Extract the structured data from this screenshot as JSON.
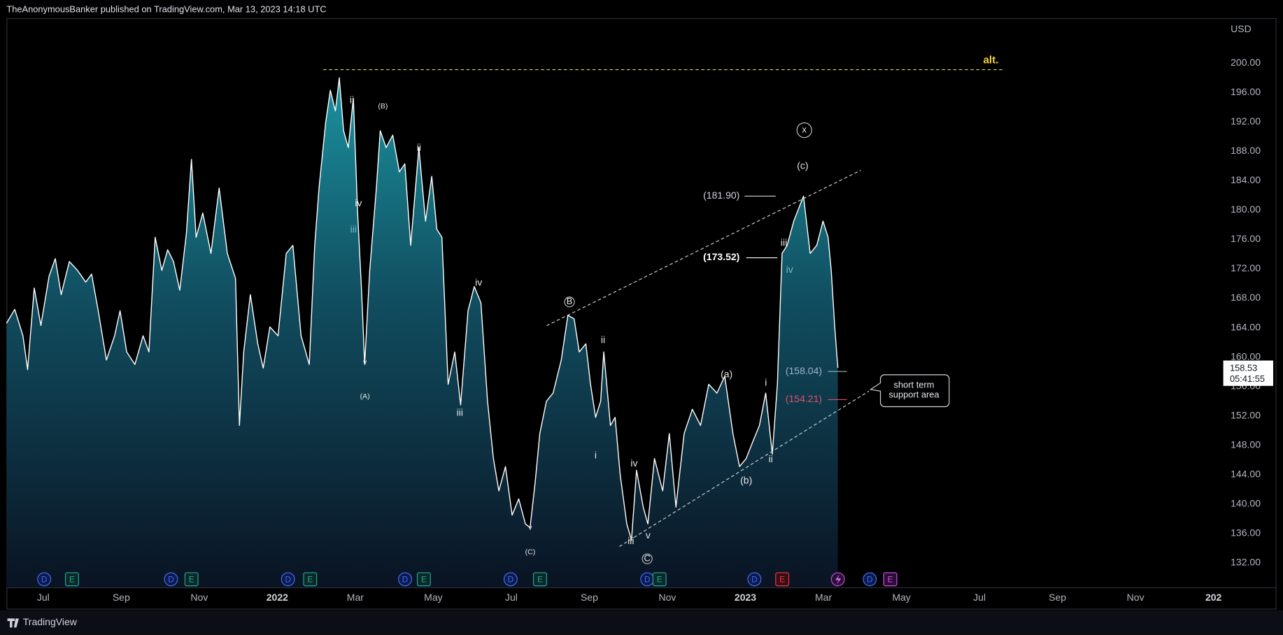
{
  "header": "TheAnonymousBanker published on TradingView.com, Mar 13, 2023 14:18 UTC",
  "footer": "TradingView",
  "currency": "USD",
  "last_price": 158.53,
  "countdown": "05:41:55",
  "callout": [
    "short term",
    "support area"
  ],
  "annotations": [
    "ii",
    "(B)",
    "ii",
    "iv",
    "iii",
    "v",
    "(A)",
    "iv",
    "iii",
    "v",
    "(C)",
    "B",
    "ii",
    "i",
    "iv",
    "iii",
    "v",
    "C",
    "(a)",
    "i",
    "(b)",
    "ii",
    "(c)",
    "x",
    "iii",
    "iv",
    "alt."
  ],
  "events": [
    "D",
    "E",
    "D",
    "E",
    "D",
    "E",
    "D",
    "E",
    "D",
    "E",
    "D",
    "E",
    "D",
    "E",
    "D",
    "E"
  ],
  "levels": [
    {
      "value": 181.9,
      "label": "(181.90)"
    },
    {
      "value": 173.52,
      "label": "(173.52)"
    },
    {
      "value": 158.04,
      "label": "(158.04)"
    },
    {
      "value": 154.21,
      "label": "(154.21)"
    }
  ],
  "chart_data": {
    "type": "area",
    "color": "#ffffff",
    "grid": false,
    "x": [
      -0.94,
      -0.73,
      -0.52,
      -0.4,
      -0.23,
      -0.06,
      0.15,
      0.31,
      0.46,
      0.67,
      0.88,
      1.09,
      1.24,
      1.41,
      1.62,
      1.83,
      1.97,
      2.14,
      2.35,
      2.56,
      2.71,
      2.87,
      3.04,
      3.19,
      3.34,
      3.5,
      3.67,
      3.8,
      3.92,
      4.09,
      4.3,
      4.51,
      4.72,
      4.93,
      5.03,
      5.14,
      5.31,
      5.5,
      5.64,
      5.81,
      6.02,
      6.23,
      6.4,
      6.61,
      6.82,
      6.96,
      7.07,
      7.24,
      7.36,
      7.49,
      7.59,
      7.7,
      7.82,
      7.95,
      8.06,
      8.16,
      8.24,
      8.37,
      8.54,
      8.64,
      8.79,
      8.96,
      9.13,
      9.27,
      9.42,
      9.63,
      9.8,
      9.96,
      10.09,
      10.22,
      10.38,
      10.55,
      10.7,
      10.89,
      11.05,
      11.22,
      11.39,
      11.54,
      11.68,
      11.85,
      12.02,
      12.19,
      12.36,
      12.48,
      12.61,
      12.73,
      12.9,
      13.07,
      13.28,
      13.45,
      13.61,
      13.74,
      13.91,
      14.03,
      14.16,
      14.29,
      14.37,
      14.54,
      14.66,
      14.79,
      14.96,
      15.08,
      15.21,
      15.38,
      15.5,
      15.67,
      15.88,
      16.05,
      16.22,
      16.43,
      16.64,
      16.85,
      17.06,
      17.27,
      17.47,
      17.68,
      17.85,
      18.02,
      18.19,
      18.36,
      18.52,
      18.69,
      18.82,
      18.94,
      19.07,
      19.24,
      19.4,
      19.49,
      19.66,
      19.83,
      19.99,
      20.12,
      20.2,
      20.29,
      20.37
    ],
    "values": [
      164.6,
      166.5,
      162.9,
      158.3,
      169.4,
      164.3,
      171.0,
      173.4,
      168.5,
      173.0,
      171.8,
      170.2,
      171.3,
      166.3,
      159.6,
      162.9,
      166.3,
      160.7,
      159.0,
      162.9,
      160.7,
      176.3,
      171.8,
      174.6,
      173.0,
      169.1,
      176.8,
      186.9,
      176.3,
      179.6,
      174.1,
      183.0,
      174.1,
      170.7,
      150.7,
      160.7,
      168.5,
      161.8,
      158.5,
      164.1,
      162.9,
      174.1,
      175.2,
      162.9,
      159.0,
      175.2,
      183.0,
      191.9,
      196.3,
      193.5,
      198.0,
      190.8,
      188.5,
      195.2,
      179.6,
      169.1,
      159.0,
      171.8,
      183.0,
      190.8,
      188.5,
      190.2,
      185.2,
      186.3,
      175.2,
      188.5,
      178.5,
      184.6,
      177.4,
      176.3,
      156.3,
      160.7,
      153.5,
      166.3,
      169.6,
      167.4,
      154.0,
      146.2,
      141.8,
      145.1,
      138.5,
      140.7,
      137.3,
      136.8,
      142.9,
      149.6,
      154.0,
      155.1,
      159.6,
      165.7,
      165.2,
      160.7,
      161.8,
      156.3,
      151.8,
      154.0,
      160.7,
      150.7,
      151.8,
      144.0,
      137.3,
      135.1,
      144.6,
      139.6,
      137.3,
      146.2,
      141.8,
      149.6,
      139.6,
      149.6,
      152.9,
      150.7,
      156.3,
      155.1,
      157.4,
      149.6,
      145.1,
      146.2,
      148.5,
      150.7,
      155.1,
      146.8,
      156.3,
      174.1,
      175.2,
      178.5,
      180.7,
      181.9,
      174.1,
      175.2,
      178.5,
      176.3,
      171.8,
      164.1,
      158.53
    ],
    "xlim": [
      -0.94,
      30.25
    ],
    "xticks": [
      {
        "value": 0,
        "label": "Jul"
      },
      {
        "value": 2,
        "label": "Sep"
      },
      {
        "value": 4,
        "label": "Nov"
      },
      {
        "value": 6,
        "label": "2022"
      },
      {
        "value": 8,
        "label": "Mar"
      },
      {
        "value": 10,
        "label": "May"
      },
      {
        "value": 12,
        "label": "Jul"
      },
      {
        "value": 14,
        "label": "Sep"
      },
      {
        "value": 16,
        "label": "Nov"
      },
      {
        "value": 18,
        "label": "2023"
      },
      {
        "value": 20,
        "label": "Mar"
      },
      {
        "value": 22,
        "label": "May"
      },
      {
        "value": 24,
        "label": "Jul"
      },
      {
        "value": 26,
        "label": "Sep"
      },
      {
        "value": 28,
        "label": "Nov"
      },
      {
        "value": 30,
        "label": "202"
      }
    ],
    "ylim": [
      128.66,
      206.12
    ],
    "yticks": [
      {
        "value": 132,
        "label": "132.00"
      },
      {
        "value": 136,
        "label": "136.00"
      },
      {
        "value": 140,
        "label": "140.00"
      },
      {
        "value": 144,
        "label": "144.00"
      },
      {
        "value": 148,
        "label": "148.00"
      },
      {
        "value": 152,
        "label": "152.00"
      },
      {
        "value": 156,
        "label": "156.00"
      },
      {
        "value": 160,
        "label": "160.00"
      },
      {
        "value": 164,
        "label": "164.00"
      },
      {
        "value": 168,
        "label": "168.00"
      },
      {
        "value": 172,
        "label": "172.00"
      },
      {
        "value": 176,
        "label": "176.00"
      },
      {
        "value": 180,
        "label": "180.00"
      },
      {
        "value": 184,
        "label": "184.00"
      },
      {
        "value": 188,
        "label": "188.00"
      },
      {
        "value": 192,
        "label": "192.00"
      },
      {
        "value": 196,
        "label": "196.00"
      },
      {
        "value": 200,
        "label": "200.00"
      }
    ]
  }
}
